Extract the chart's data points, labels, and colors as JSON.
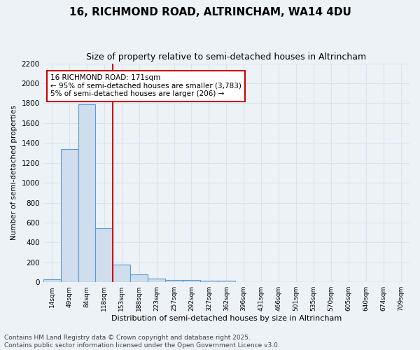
{
  "title": "16, RICHMOND ROAD, ALTRINCHAM, WA14 4DU",
  "subtitle": "Size of property relative to semi-detached houses in Altrincham",
  "xlabel": "Distribution of semi-detached houses by size in Altrincham",
  "ylabel": "Number of semi-detached properties",
  "bar_color": "#cfdded",
  "bar_edge_color": "#5b9bd5",
  "background_color": "#edf2f7",
  "grid_color": "#d8e4f0",
  "ylim": [
    0,
    2200
  ],
  "yticks": [
    0,
    200,
    400,
    600,
    800,
    1000,
    1200,
    1400,
    1600,
    1800,
    2000,
    2200
  ],
  "x_labels": [
    "14sqm",
    "49sqm",
    "84sqm",
    "118sqm",
    "153sqm",
    "188sqm",
    "223sqm",
    "257sqm",
    "292sqm",
    "327sqm",
    "362sqm",
    "396sqm",
    "431sqm",
    "466sqm",
    "501sqm",
    "535sqm",
    "570sqm",
    "605sqm",
    "640sqm",
    "674sqm",
    "709sqm"
  ],
  "bar_heights": [
    30,
    1340,
    1790,
    540,
    175,
    80,
    35,
    25,
    20,
    15,
    15,
    0,
    0,
    0,
    0,
    0,
    0,
    0,
    0,
    0,
    0
  ],
  "annotation_title": "16 RICHMOND ROAD: 171sqm",
  "annotation_line1": "← 95% of semi-detached houses are smaller (3,783)",
  "annotation_line2": "5% of semi-detached houses are larger (206) →",
  "annotation_color": "#cc0000",
  "vline_color": "#cc0000",
  "vline_pos": 3.5,
  "footer_line1": "Contains HM Land Registry data © Crown copyright and database right 2025.",
  "footer_line2": "Contains public sector information licensed under the Open Government Licence v3.0.",
  "title_fontsize": 11,
  "subtitle_fontsize": 9,
  "annotation_fontsize": 7.5,
  "footer_fontsize": 6.5,
  "ylabel_fontsize": 7.5,
  "xlabel_fontsize": 8
}
